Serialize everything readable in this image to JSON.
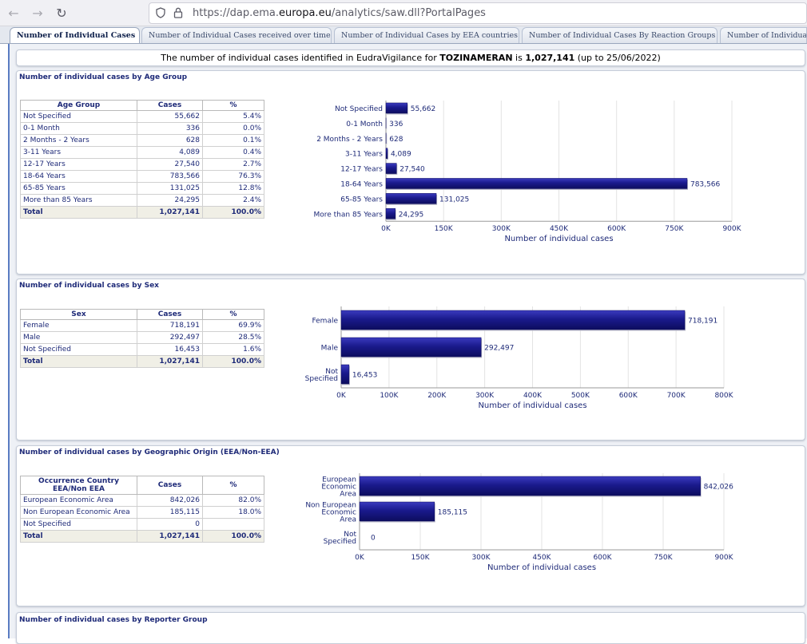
{
  "browser": {
    "url_prefix": "https://dap.ema.",
    "url_domain": "europa.eu",
    "url_suffix": "/analytics/saw.dll?PortalPages"
  },
  "tabs": [
    {
      "label": "Number of Individual Cases",
      "active": true
    },
    {
      "label": "Number of Individual Cases received over time"
    },
    {
      "label": "Number of Individual Cases by EEA countries"
    },
    {
      "label": "Number of Individual Cases By Reaction Groups"
    },
    {
      "label": "Number of Individual"
    }
  ],
  "banner": {
    "prefix": "The number of individual cases identified in EudraVigilance for",
    "product": "TOZINAMERAN",
    "is": "is",
    "total": "1,027,141",
    "suffix": "(up to 25/06/2022)"
  },
  "sections": {
    "age": {
      "title": "Number of individual cases by Age Group",
      "headers": [
        "Age Group",
        "Cases",
        "%"
      ],
      "rows": [
        [
          "Not Specified",
          "55,662",
          "5.4%"
        ],
        [
          "0-1 Month",
          "336",
          "0.0%"
        ],
        [
          "2 Months - 2 Years",
          "628",
          "0.1%"
        ],
        [
          "3-11 Years",
          "4,089",
          "0.4%"
        ],
        [
          "12-17 Years",
          "27,540",
          "2.7%"
        ],
        [
          "18-64 Years",
          "783,566",
          "76.3%"
        ],
        [
          "65-85 Years",
          "131,025",
          "12.8%"
        ],
        [
          "More than 85 Years",
          "24,295",
          "2.4%"
        ]
      ],
      "total": [
        "Total",
        "1,027,141",
        "100.0%"
      ]
    },
    "sex": {
      "title": "Number of individual cases by Sex",
      "headers": [
        "Sex",
        "Cases",
        "%"
      ],
      "rows": [
        [
          "Female",
          "718,191",
          "69.9%"
        ],
        [
          "Male",
          "292,497",
          "28.5%"
        ],
        [
          "Not Specified",
          "16,453",
          "1.6%"
        ]
      ],
      "total": [
        "Total",
        "1,027,141",
        "100.0%"
      ]
    },
    "geo": {
      "title": "Number of individual cases by Geographic Origin (EEA/Non-EEA)",
      "headers": [
        "Occurrence Country EEA/Non EEA",
        "Cases",
        "%"
      ],
      "rows": [
        [
          "European Economic Area",
          "842,026",
          "82.0%"
        ],
        [
          "Non European Economic Area",
          "185,115",
          "18.0%"
        ],
        [
          "Not Specified",
          "0",
          ""
        ]
      ],
      "total": [
        "Total",
        "1,027,141",
        "100.0%"
      ]
    },
    "reporter": {
      "title": "Number of individual cases by Reporter Group"
    }
  },
  "chart_data": [
    {
      "type": "bar",
      "orientation": "horizontal",
      "categories": [
        "Not Specified",
        "0-1 Month",
        "2 Months - 2 Years",
        "3-11 Years",
        "12-17 Years",
        "18-64 Years",
        "65-85 Years",
        "More than 85 Years"
      ],
      "values": [
        55662,
        336,
        628,
        4089,
        27540,
        783566,
        131025,
        24295
      ],
      "data_labels": [
        "55,662",
        "336",
        "628",
        "4,089",
        "27,540",
        "783,566",
        "131,025",
        "24,295"
      ],
      "xlabel": "Number of individual cases",
      "xlim": [
        0,
        900000
      ],
      "xticks": [
        0,
        150000,
        300000,
        450000,
        600000,
        750000,
        900000
      ],
      "xtick_labels": [
        "0K",
        "150K",
        "300K",
        "450K",
        "600K",
        "750K",
        "900K"
      ],
      "grid": true,
      "bar_color": "#1a1a8c"
    },
    {
      "type": "bar",
      "orientation": "horizontal",
      "categories": [
        "Female",
        "Male",
        "Not Specified"
      ],
      "values": [
        718191,
        292497,
        16453
      ],
      "data_labels": [
        "718,191",
        "292,497",
        "16,453"
      ],
      "xlabel": "Number of individual cases",
      "xlim": [
        0,
        800000
      ],
      "xticks": [
        0,
        100000,
        200000,
        300000,
        400000,
        500000,
        600000,
        700000,
        800000
      ],
      "xtick_labels": [
        "0K",
        "100K",
        "200K",
        "300K",
        "400K",
        "500K",
        "600K",
        "700K",
        "800K"
      ],
      "grid": true,
      "bar_color": "#1a1a8c"
    },
    {
      "type": "bar",
      "orientation": "horizontal",
      "categories": [
        "European Economic Area",
        "Non European Economic Area",
        "Not Specified"
      ],
      "values": [
        842026,
        185115,
        0
      ],
      "data_labels": [
        "842,026",
        "185,115",
        "0"
      ],
      "xlabel": "Number of individual cases",
      "xlim": [
        0,
        900000
      ],
      "xticks": [
        0,
        150000,
        300000,
        450000,
        600000,
        750000,
        900000
      ],
      "xtick_labels": [
        "0K",
        "150K",
        "300K",
        "450K",
        "600K",
        "750K",
        "900K"
      ],
      "grid": true,
      "bar_color": "#1a1a8c"
    }
  ]
}
